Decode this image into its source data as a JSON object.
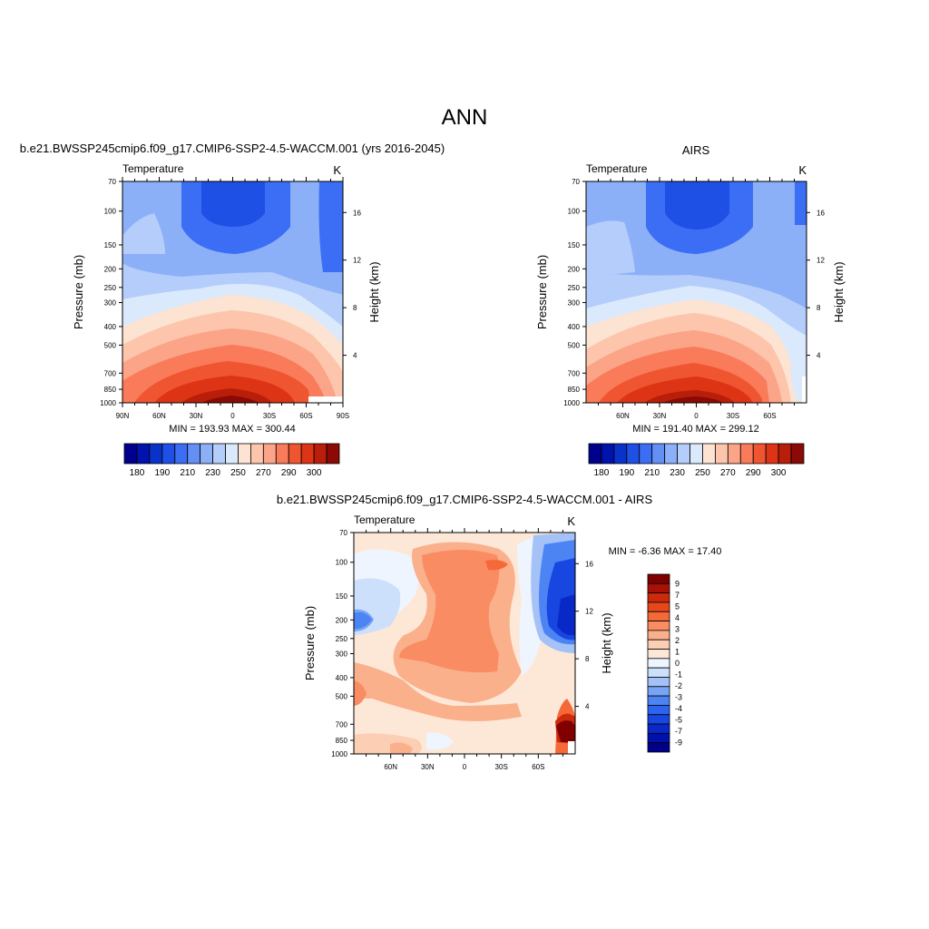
{
  "figure": {
    "title": "ANN"
  },
  "colors": {
    "temperature_scale": [
      "#00008c",
      "#0013ad",
      "#0a32c8",
      "#1e50e6",
      "#3c6ef5",
      "#6490f5",
      "#8cb0f7",
      "#b4cdfa",
      "#dae9fc",
      "#fde3d2",
      "#fcc5ac",
      "#fba487",
      "#f97b5a",
      "#ef5530",
      "#dc3414",
      "#b91e0a",
      "#8c0a05"
    ],
    "difference_scale": [
      "#000088",
      "#0010aa",
      "#0828c8",
      "#1846e0",
      "#2c64f0",
      "#4c84f4",
      "#78a4f6",
      "#a4c2f8",
      "#cce0fb",
      "#eef5fe",
      "#fde8d8",
      "#fcceb4",
      "#fbb08c",
      "#f98c62",
      "#f56838",
      "#e8461c",
      "#cc2a0c",
      "#a81206",
      "#800000"
    ]
  },
  "chart_data": [
    {
      "type": "heatmap",
      "id": "model",
      "title": "b.e21.BWSSP245cmip6.f09_g17.CMIP6-SSP2-4.5-WACCM.001 (yrs 2016-2045)",
      "left_label": "Temperature",
      "right_label": "K",
      "ylabel": "Pressure (mb)",
      "ylabel_right": "Height (km)",
      "x_ticks": [
        "90N",
        "60N",
        "30N",
        "0",
        "30S",
        "60S",
        "90S"
      ],
      "x_tick_values": [
        90,
        60,
        30,
        0,
        -30,
        -60,
        -90
      ],
      "xlim": [
        90,
        -90
      ],
      "y_ticks": [
        70,
        100,
        150,
        200,
        250,
        300,
        400,
        500,
        700,
        850,
        1000
      ],
      "ylim": [
        1000,
        70
      ],
      "y_scale": "log",
      "height_ticks": [
        16,
        12,
        8,
        4
      ],
      "stats": "MIN = 193.93  MAX = 300.44",
      "min": 193.93,
      "max": 300.44,
      "colorbar": {
        "orientation": "horizontal",
        "levels": [
          175,
          180,
          185,
          190,
          200,
          210,
          220,
          230,
          240,
          250,
          260,
          270,
          280,
          290,
          295,
          300
        ],
        "labels": [
          "180",
          "190",
          "210",
          "230",
          "250",
          "270",
          "290",
          "300"
        ]
      }
    },
    {
      "type": "heatmap",
      "id": "obs",
      "title": "AIRS",
      "left_label": "Temperature",
      "right_label": "K",
      "ylabel": "Pressure (mb)",
      "ylabel_right": "Height (km)",
      "x_ticks": [
        "60N",
        "30N",
        "0",
        "30S",
        "60S"
      ],
      "x_tick_values": [
        60,
        30,
        0,
        -30,
        -60
      ],
      "xlim": [
        90,
        -90
      ],
      "y_ticks": [
        70,
        100,
        150,
        200,
        250,
        300,
        400,
        500,
        700,
        850,
        1000
      ],
      "ylim": [
        1000,
        70
      ],
      "y_scale": "log",
      "height_ticks": [
        16,
        12,
        8,
        4
      ],
      "stats": "MIN = 191.40  MAX = 299.12",
      "min": 191.4,
      "max": 299.12,
      "colorbar": {
        "orientation": "horizontal",
        "levels": [
          175,
          180,
          185,
          190,
          200,
          210,
          220,
          230,
          240,
          250,
          260,
          270,
          280,
          290,
          295,
          300
        ],
        "labels": [
          "180",
          "190",
          "210",
          "230",
          "250",
          "270",
          "290",
          "300"
        ]
      }
    },
    {
      "type": "heatmap",
      "id": "diff",
      "title": "b.e21.BWSSP245cmip6.f09_g17.CMIP6-SSP2-4.5-WACCM.001 - AIRS",
      "left_label": "Temperature",
      "right_label": "K",
      "ylabel": "Pressure (mb)",
      "ylabel_right": "Height (km)",
      "x_ticks": [
        "60N",
        "30N",
        "0",
        "30S",
        "60S"
      ],
      "x_tick_values": [
        60,
        30,
        0,
        -30,
        -60
      ],
      "xlim": [
        90,
        -90
      ],
      "y_ticks": [
        70,
        100,
        150,
        200,
        250,
        300,
        400,
        500,
        700,
        850,
        1000
      ],
      "ylim": [
        1000,
        70
      ],
      "y_scale": "log",
      "height_ticks": [
        16,
        12,
        8,
        4
      ],
      "stats": "MIN =  -6.36  MAX =  17.40",
      "min": -6.36,
      "max": 17.4,
      "colorbar": {
        "orientation": "vertical",
        "levels": [
          9,
          8,
          7,
          6,
          5,
          4.5,
          4,
          3.5,
          3,
          2.5,
          2,
          1.5,
          1,
          0.5,
          0,
          -0.5,
          -1,
          -1.5,
          -2,
          -2.5,
          -3,
          -3.5,
          -4,
          -4.5,
          -5,
          -6,
          -7,
          -8,
          -9
        ],
        "labels": [
          "9",
          "7",
          "5",
          "4",
          "3",
          "2",
          "1",
          "0",
          "-1",
          "-2",
          "-3",
          "-4",
          "-5",
          "-7",
          "-9"
        ]
      }
    }
  ]
}
